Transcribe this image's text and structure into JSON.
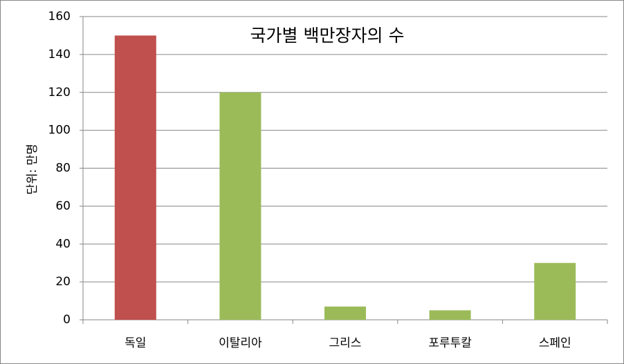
{
  "chart_data": {
    "type": "bar",
    "title": "국가별 백만장자의 수",
    "y_label": "단위: 만명",
    "categories": [
      "독일",
      "이탈리아",
      "그리스",
      "포루투칼",
      "스페인"
    ],
    "values": [
      150,
      120,
      7,
      5,
      30
    ],
    "colors": [
      "#c0504d",
      "#9bbb59",
      "#9bbb59",
      "#9bbb59",
      "#9bbb59"
    ],
    "ylim": [
      0,
      160
    ],
    "yticks": [
      0,
      20,
      40,
      60,
      80,
      100,
      120,
      140,
      160
    ],
    "grid": true
  }
}
